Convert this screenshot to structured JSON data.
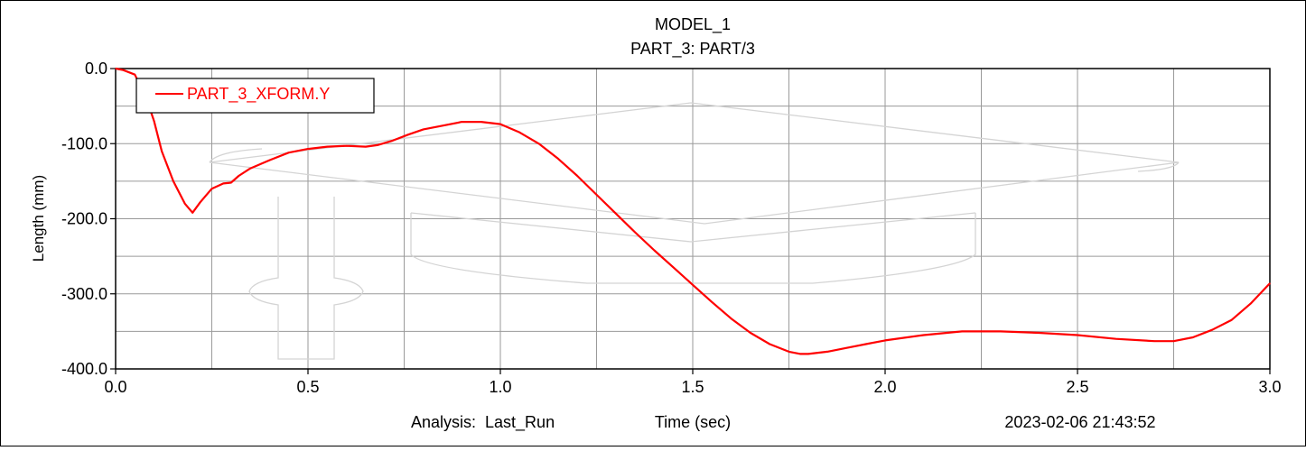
{
  "title": "MODEL_1",
  "subtitle": "PART_3: PART/3",
  "footer": {
    "analysis_label": "Analysis:  Last_Run",
    "timestamp": "2023-02-06 21:43:52"
  },
  "colors": {
    "series": "#ff0000",
    "grid": "#9a9a9a",
    "watermark": "#d4d4d4"
  },
  "chart_data": {
    "type": "line",
    "title": "MODEL_1",
    "subtitle": "PART_3: PART/3",
    "xlabel": "Time (sec)",
    "ylabel": "Length (mm)",
    "xlim": [
      0.0,
      3.0
    ],
    "ylim": [
      -400.0,
      0.0
    ],
    "x_ticks": [
      "0.0",
      "0.5",
      "1.0",
      "1.5",
      "2.0",
      "2.5",
      "3.0"
    ],
    "y_ticks": [
      "0.0",
      "-100.0",
      "-200.0",
      "-300.0",
      "-400.0"
    ],
    "grid": true,
    "legend_position": "top-left",
    "series": [
      {
        "name": "PART_3_XFORM.Y",
        "color": "#ff0000",
        "x": [
          0.0,
          0.02,
          0.05,
          0.08,
          0.1,
          0.12,
          0.15,
          0.18,
          0.2,
          0.22,
          0.25,
          0.28,
          0.3,
          0.32,
          0.35,
          0.4,
          0.45,
          0.5,
          0.55,
          0.6,
          0.65,
          0.68,
          0.72,
          0.76,
          0.8,
          0.85,
          0.9,
          0.95,
          1.0,
          1.05,
          1.1,
          1.15,
          1.2,
          1.25,
          1.3,
          1.35,
          1.4,
          1.45,
          1.5,
          1.55,
          1.6,
          1.65,
          1.7,
          1.75,
          1.78,
          1.8,
          1.85,
          1.9,
          1.95,
          2.0,
          2.1,
          2.2,
          2.3,
          2.4,
          2.5,
          2.6,
          2.7,
          2.75,
          2.8,
          2.85,
          2.9,
          2.95,
          3.0
        ],
        "values": [
          0,
          -2,
          -8,
          -40,
          -70,
          -110,
          -150,
          -180,
          -192,
          -178,
          -160,
          -153,
          -152,
          -143,
          -133,
          -122,
          -112,
          -107,
          -104,
          -103,
          -104,
          -102,
          -96,
          -88,
          -81,
          -76,
          -71,
          -71,
          -74,
          -85,
          -100,
          -120,
          -143,
          -168,
          -193,
          -218,
          -242,
          -265,
          -288,
          -311,
          -333,
          -352,
          -367,
          -377,
          -380,
          -380,
          -377,
          -372,
          -367,
          -362,
          -355,
          -350,
          -350,
          -352,
          -355,
          -360,
          -363,
          -363,
          -358,
          -348,
          -335,
          -313,
          -286
        ]
      }
    ]
  }
}
